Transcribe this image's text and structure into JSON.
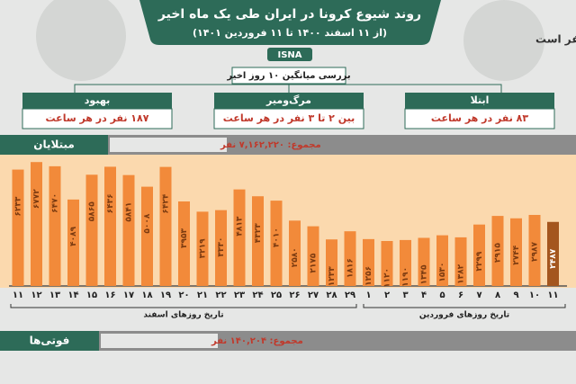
{
  "header": {
    "title": "روند شیوع کرونا در ایران طی یک ماه اخیر",
    "subtitle": "(از ۱۱ اسفند ۱۴۰۰ تا ۱۱ فروردین ۱۴۰۱)",
    "source": "ISNA",
    "unit_note": "اعداد بر حسب نفر است"
  },
  "summary": {
    "title": "بررسی میانگین ۱۰ روز اخیر",
    "boxes": [
      {
        "label": "بهبود",
        "value": "۱۸۷ نفر در هر ساعت"
      },
      {
        "label": "مرگ‌ومیر",
        "value": "بین ۲ تا ۳ نفر در هر ساعت"
      },
      {
        "label": "ابتلا",
        "value": "۸۳ نفر در هر ساعت"
      }
    ]
  },
  "chart_data": {
    "type": "bar",
    "title": "مبتلایان",
    "subtitle": "مجموع: ۷,۱۶۲,۲۲۰ نفر",
    "categories": [
      "۱۱",
      "۱۲",
      "۱۳",
      "۱۴",
      "۱۵",
      "۱۶",
      "۱۷",
      "۱۸",
      "۱۹",
      "۲۰",
      "۲۱",
      "۲۲",
      "۲۳",
      "۲۴",
      "۲۵",
      "۲۶",
      "۲۷",
      "۲۸",
      "۲۹",
      "۱",
      "۲",
      "۳",
      "۴",
      "۵",
      "۶",
      "۷",
      "۸",
      "۹",
      "۱۰",
      "۱۱"
    ],
    "values": [
      6233,
      6772,
      6470,
      4089,
      5865,
      6436,
      5841,
      5008,
      6424,
      3953,
      3219,
      3330,
      4813,
      4323,
      4010,
      2580,
      2175,
      1233,
      1816,
      1256,
      1120,
      1190,
      1345,
      1530,
      1382,
      2299,
      2915,
      2744,
      2987,
      2487
    ],
    "value_labels": [
      "۶۲۳۳",
      "۶۷۷۲",
      "۶۴۷۰",
      "۴۰۸۹",
      "۵۸۶۵",
      "۶۴۳۶",
      "۵۸۴۱",
      "۵۰۰۸",
      "۶۴۲۴",
      "۳۹۵۳",
      "۳۲۱۹",
      "۳۳۳۰",
      "۴۸۱۳",
      "۴۳۲۳",
      "۴۰۱۰",
      "۲۵۸۰",
      "۲۱۷۵",
      "۱۲۳۳",
      "۱۸۱۶",
      "۱۲۵۶",
      "۱۱۲۰",
      "۱۱۹۰",
      "۱۳۴۵",
      "۱۵۳۰",
      "۱۳۸۲",
      "۲۲۹۹",
      "۲۹۱۵",
      "۲۷۴۴",
      "۲۹۸۷",
      "۲۴۸۷"
    ],
    "x_group_labels": [
      "تاریخ روزهای اسفند",
      "تاریخ روزهای فروردین"
    ],
    "color": "#f28a3a",
    "highlight_color": "#a4561e",
    "ylim": [
      -2100,
      7300
    ]
  },
  "deaths": {
    "title": "فوتی‌ها",
    "total": "مجموع: ۱۴۰,۲۰۴ نفر"
  }
}
